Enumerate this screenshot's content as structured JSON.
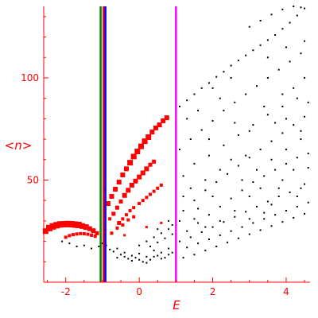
{
  "chart_data": {
    "type": "scatter",
    "xlabel": "E",
    "ylabel": "<n>",
    "xlim": [
      -2.6,
      4.65
    ],
    "ylim": [
      0,
      135
    ],
    "x_ticks": [
      -2,
      0,
      2,
      4
    ],
    "y_ticks": [
      50,
      100
    ],
    "x_tick_labels": [
      "-2",
      "0",
      "2",
      "4"
    ],
    "y_tick_labels": [
      "50",
      "100"
    ],
    "grid": false,
    "legend": "none",
    "colors": {
      "axes": "#ff0000",
      "highlight_points": "#ff0000",
      "background_points": "#000000",
      "vline_green": "#008000",
      "vline_red": "#ff0000",
      "vline_blue": "#0000ff",
      "vline_magenta": "#ff00ff"
    },
    "vlines": [
      {
        "x": -1.05,
        "color": "#008000"
      },
      {
        "x": -0.97,
        "color": "#ff0000"
      },
      {
        "x": -0.92,
        "color": "#0000ff"
      },
      {
        "x": 1.0,
        "color": "#ff00ff"
      }
    ],
    "highlighted_series": [
      {
        "color": "#ff0000",
        "points": [
          [
            -2.55,
            25.0,
            3.5
          ],
          [
            -2.45,
            26.5,
            4
          ],
          [
            -2.35,
            27.3,
            4
          ],
          [
            -2.25,
            27.9,
            4
          ],
          [
            -2.15,
            28.3,
            4
          ],
          [
            -2.05,
            28.4,
            4
          ],
          [
            -1.95,
            28.5,
            4
          ],
          [
            -1.85,
            28.4,
            4
          ],
          [
            -1.75,
            28.2,
            4
          ],
          [
            -1.65,
            28.0,
            4
          ],
          [
            -1.55,
            27.5,
            3.5
          ],
          [
            -1.45,
            27.0,
            3.5
          ],
          [
            -1.35,
            26.2,
            3
          ],
          [
            -1.25,
            25.2,
            3
          ],
          [
            -1.15,
            24.0,
            2.5
          ],
          [
            -2.0,
            22.0,
            2
          ],
          [
            -1.9,
            22.8,
            2
          ],
          [
            -1.8,
            23.3,
            2
          ],
          [
            -1.7,
            23.6,
            2
          ],
          [
            -1.6,
            23.8,
            2
          ],
          [
            -1.5,
            23.7,
            2
          ],
          [
            -1.4,
            23.5,
            2
          ],
          [
            -1.3,
            23.0,
            2
          ],
          [
            -1.2,
            22.5,
            2
          ],
          [
            -0.85,
            38.5,
            3
          ],
          [
            -0.75,
            42.0,
            3
          ],
          [
            -0.65,
            45.5,
            3
          ],
          [
            -0.55,
            49.0,
            3
          ],
          [
            -0.45,
            52.5,
            3
          ],
          [
            -0.35,
            55.5,
            3
          ],
          [
            -0.25,
            58.5,
            3.5
          ],
          [
            -0.15,
            61.5,
            3.5
          ],
          [
            -0.05,
            64.0,
            3.5
          ],
          [
            0.05,
            66.5,
            3.5
          ],
          [
            0.15,
            69.0,
            3.5
          ],
          [
            0.25,
            71.0,
            3.5
          ],
          [
            0.35,
            73.5,
            3
          ],
          [
            0.45,
            75.5,
            3
          ],
          [
            0.55,
            77.0,
            3
          ],
          [
            0.65,
            79.0,
            3
          ],
          [
            0.75,
            80.5,
            3
          ],
          [
            -0.7,
            33.5,
            2.5
          ],
          [
            -0.6,
            36.5,
            2.5
          ],
          [
            -0.5,
            39.5,
            2.5
          ],
          [
            -0.4,
            42.5,
            3
          ],
          [
            -0.3,
            45.0,
            3
          ],
          [
            -0.2,
            47.5,
            3
          ],
          [
            -0.1,
            49.5,
            3
          ],
          [
            0.0,
            51.5,
            3
          ],
          [
            0.1,
            53.5,
            3
          ],
          [
            0.2,
            55.5,
            3
          ],
          [
            0.3,
            57.5,
            2.5
          ],
          [
            0.4,
            59.0,
            2.5
          ],
          [
            -0.55,
            29.0,
            2.5
          ],
          [
            -0.45,
            31.0,
            2
          ],
          [
            -0.35,
            33.0,
            2
          ],
          [
            -0.25,
            35.0,
            2
          ],
          [
            -0.15,
            36.5,
            2
          ],
          [
            0.0,
            38.5,
            2
          ],
          [
            0.1,
            40.0,
            2
          ],
          [
            0.2,
            41.5,
            2
          ],
          [
            0.3,
            43.0,
            2
          ],
          [
            0.4,
            44.5,
            2
          ],
          [
            0.5,
            46.0,
            2
          ],
          [
            0.6,
            47.5,
            2
          ],
          [
            -0.75,
            24.0,
            2
          ],
          [
            -0.6,
            26.5,
            2
          ],
          [
            -0.45,
            28.0,
            2
          ],
          [
            -0.3,
            30.5,
            2
          ],
          [
            -0.15,
            32.0,
            2
          ],
          [
            -0.4,
            23.0,
            1.5
          ],
          [
            0.2,
            27.0,
            1.5
          ],
          [
            0.6,
            29.0,
            1.5
          ],
          [
            -0.8,
            31.0,
            2
          ]
        ]
      }
    ],
    "background_series": {
      "color": "#000000",
      "points": [
        [
          -2.1,
          20.0
        ],
        [
          -1.9,
          19.0
        ],
        [
          -1.7,
          17.5
        ],
        [
          -1.5,
          18.0
        ],
        [
          -1.3,
          16.5
        ],
        [
          -1.1,
          17.5
        ],
        [
          -1.0,
          19.0
        ],
        [
          -0.9,
          18.0
        ],
        [
          -0.8,
          16.0
        ],
        [
          -0.7,
          15.0
        ],
        [
          -0.6,
          16.5
        ],
        [
          -0.5,
          13.5
        ],
        [
          -0.4,
          12.5
        ],
        [
          -0.3,
          11.5
        ],
        [
          -0.2,
          10.5
        ],
        [
          -0.1,
          12.0
        ],
        [
          0.0,
          11.0
        ],
        [
          0.1,
          10.0
        ],
        [
          0.2,
          9.5
        ],
        [
          0.3,
          11.0
        ],
        [
          0.4,
          12.5
        ],
        [
          0.5,
          13.0
        ],
        [
          0.6,
          11.5
        ],
        [
          0.7,
          12.0
        ],
        [
          0.8,
          13.5
        ],
        [
          0.9,
          14.5
        ],
        [
          -0.6,
          12.0
        ],
        [
          -0.4,
          14.5
        ],
        [
          -0.2,
          13.0
        ],
        [
          0.0,
          14.0
        ],
        [
          0.2,
          12.5
        ],
        [
          0.4,
          15.5
        ],
        [
          0.6,
          14.5
        ],
        [
          0.8,
          16.5
        ],
        [
          0.3,
          17.5
        ],
        [
          0.5,
          19.5
        ],
        [
          0.7,
          21.5
        ],
        [
          0.9,
          23.5
        ],
        [
          1.1,
          86.0
        ],
        [
          1.3,
          89.0
        ],
        [
          1.5,
          92.0
        ],
        [
          1.7,
          95.0
        ],
        [
          1.9,
          97.5
        ],
        [
          2.1,
          100.5
        ],
        [
          2.3,
          103.0
        ],
        [
          2.5,
          106.0
        ],
        [
          2.7,
          108.5
        ],
        [
          2.9,
          111.0
        ],
        [
          3.1,
          113.5
        ],
        [
          3.3,
          116.0
        ],
        [
          3.5,
          118.5
        ],
        [
          3.7,
          121.0
        ],
        [
          3.9,
          124.0
        ],
        [
          4.1,
          127.0
        ],
        [
          4.3,
          130.5
        ],
        [
          4.5,
          134.0
        ],
        [
          3.0,
          125.0
        ],
        [
          3.3,
          128.0
        ],
        [
          3.6,
          131.0
        ],
        [
          3.9,
          133.5
        ],
        [
          4.2,
          135.0
        ],
        [
          4.4,
          134.5
        ],
        [
          1.1,
          65.0
        ],
        [
          1.4,
          70.0
        ],
        [
          1.7,
          74.5
        ],
        [
          2.0,
          79.0
        ],
        [
          2.3,
          84.0
        ],
        [
          2.6,
          88.0
        ],
        [
          2.9,
          92.0
        ],
        [
          3.2,
          96.0
        ],
        [
          3.5,
          100.0
        ],
        [
          3.8,
          104.0
        ],
        [
          4.1,
          108.0
        ],
        [
          4.4,
          112.0
        ],
        [
          2.0,
          95.0
        ],
        [
          2.5,
          100.0
        ],
        [
          3.5,
          110.0
        ],
        [
          4.0,
          115.0
        ],
        [
          4.5,
          118.0
        ],
        [
          1.5,
          58.0
        ],
        [
          1.9,
          62.0
        ],
        [
          2.3,
          67.0
        ],
        [
          2.7,
          72.0
        ],
        [
          3.1,
          77.0
        ],
        [
          3.5,
          82.0
        ],
        [
          3.9,
          86.0
        ],
        [
          4.3,
          90.0
        ],
        [
          1.2,
          35.0
        ],
        [
          1.5,
          40.0
        ],
        [
          1.8,
          45.0
        ],
        [
          2.1,
          49.0
        ],
        [
          2.4,
          53.0
        ],
        [
          2.7,
          57.0
        ],
        [
          3.0,
          61.0
        ],
        [
          3.3,
          65.0
        ],
        [
          3.6,
          69.0
        ],
        [
          3.9,
          73.0
        ],
        [
          4.2,
          77.0
        ],
        [
          4.5,
          81.0
        ],
        [
          1.3,
          25.0
        ],
        [
          1.6,
          29.0
        ],
        [
          1.9,
          33.0
        ],
        [
          2.2,
          37.0
        ],
        [
          2.5,
          41.0
        ],
        [
          2.8,
          45.0
        ],
        [
          3.1,
          49.0
        ],
        [
          3.4,
          52.0
        ],
        [
          3.7,
          55.0
        ],
        [
          4.0,
          58.0
        ],
        [
          4.3,
          61.0
        ],
        [
          4.6,
          63.0
        ],
        [
          1.1,
          20.0
        ],
        [
          1.4,
          22.0
        ],
        [
          1.7,
          24.5
        ],
        [
          2.0,
          27.0
        ],
        [
          2.3,
          29.5
        ],
        [
          2.6,
          32.0
        ],
        [
          2.9,
          34.5
        ],
        [
          3.2,
          37.0
        ],
        [
          3.5,
          39.5
        ],
        [
          3.8,
          42.0
        ],
        [
          4.1,
          44.0
        ],
        [
          4.4,
          46.0
        ],
        [
          1.0,
          15.0
        ],
        [
          1.3,
          17.0
        ],
        [
          1.6,
          19.0
        ],
        [
          1.9,
          21.0
        ],
        [
          2.2,
          23.0
        ],
        [
          2.5,
          25.0
        ],
        [
          2.8,
          27.0
        ],
        [
          3.1,
          29.0
        ],
        [
          3.4,
          31.0
        ],
        [
          3.7,
          33.0
        ],
        [
          4.0,
          35.0
        ],
        [
          4.3,
          37.0
        ],
        [
          4.6,
          39.0
        ],
        [
          1.2,
          12.0
        ],
        [
          1.5,
          13.5
        ],
        [
          1.8,
          15.5
        ],
        [
          2.1,
          17.5
        ],
        [
          2.4,
          19.5
        ],
        [
          2.7,
          21.5
        ],
        [
          3.0,
          23.5
        ],
        [
          3.3,
          25.5
        ],
        [
          3.6,
          27.5
        ],
        [
          3.9,
          29.5
        ],
        [
          4.2,
          31.5
        ],
        [
          4.5,
          33.5
        ],
        [
          0.0,
          18.0
        ],
        [
          0.2,
          20.0
        ],
        [
          0.4,
          22.0
        ],
        [
          0.6,
          24.0
        ],
        [
          0.8,
          26.0
        ],
        [
          0.9,
          28.0
        ],
        [
          0.5,
          26.0
        ],
        [
          0.8,
          30.0
        ],
        [
          2.5,
          60.0
        ],
        [
          2.8,
          50.0
        ],
        [
          3.0,
          42.0
        ],
        [
          3.3,
          46.0
        ],
        [
          3.6,
          38.0
        ],
        [
          3.9,
          50.0
        ],
        [
          4.2,
          55.0
        ],
        [
          4.5,
          48.0
        ],
        [
          4.4,
          70.0
        ],
        [
          4.0,
          65.0
        ],
        [
          3.6,
          60.0
        ],
        [
          3.2,
          55.0
        ],
        [
          2.9,
          62.0
        ],
        [
          2.2,
          55.0
        ],
        [
          1.8,
          50.0
        ],
        [
          1.4,
          46.0
        ],
        [
          1.2,
          52.0
        ],
        [
          4.6,
          56.0
        ],
        [
          4.3,
          42.0
        ],
        [
          3.8,
          46.0
        ],
        [
          3.4,
          34.0
        ],
        [
          3.0,
          31.0
        ],
        [
          2.6,
          35.0
        ],
        [
          2.2,
          30.0
        ],
        [
          1.8,
          27.0
        ],
        [
          1.5,
          31.0
        ],
        [
          4.5,
          100.0
        ],
        [
          4.2,
          95.0
        ],
        [
          3.9,
          92.0
        ],
        [
          4.6,
          88.0
        ],
        [
          4.0,
          80.0
        ],
        [
          3.7,
          78.0
        ],
        [
          4.4,
          74.0
        ],
        [
          1.6,
          84.0
        ],
        [
          1.3,
          80.0
        ],
        [
          2.6,
          78.0
        ],
        [
          1.9,
          70.0
        ],
        [
          3.0,
          74.0
        ],
        [
          3.4,
          86.0
        ],
        [
          2.2,
          90.0
        ],
        [
          1.2,
          42.0
        ],
        [
          1.1,
          30.0
        ],
        [
          1.6,
          36.0
        ],
        [
          2.0,
          42.0
        ]
      ]
    }
  }
}
